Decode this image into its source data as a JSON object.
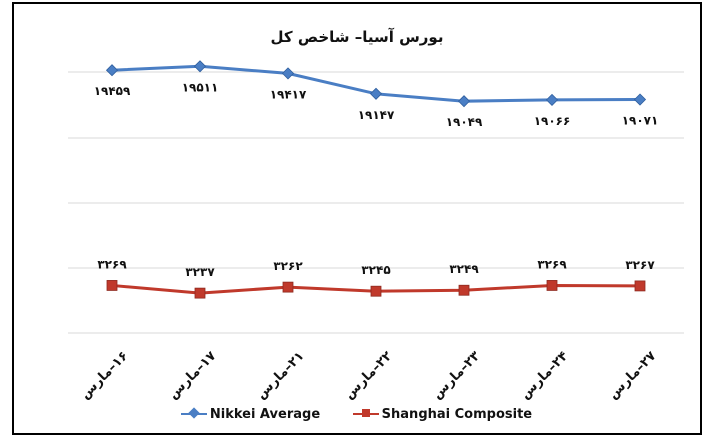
{
  "chart_data": {
    "type": "line",
    "title": "بورس آسیا– شاخص کل",
    "categories": [
      "۱۶–مارس",
      "۱۷–مارس",
      "۲۱–مارس",
      "۲۲–مارس",
      "۲۳–مارس",
      "۲۴–مارس",
      "۲۷–مارس"
    ],
    "series": [
      {
        "name": "Nikkei Average",
        "values": [
          19459,
          19511,
          19417,
          19147,
          19049,
          19066,
          19071
        ],
        "labels": [
          "۱۹۴۵۹",
          "۱۹۵۱۱",
          "۱۹۴۱۷",
          "۱۹۱۴۷",
          "۱۹۰۴۹",
          "۱۹۰۶۶",
          "۱۹۰۷۱"
        ],
        "color": "#4a7ec4",
        "marker": "diamond"
      },
      {
        "name": "Shanghai Composite",
        "values": [
          3269,
          3237,
          3262,
          3245,
          3249,
          3269,
          3267
        ],
        "labels": [
          "۳۲۶۹",
          "۳۲۳۷",
          "۳۲۶۲",
          "۳۲۴۵",
          "۳۲۴۹",
          "۳۲۶۹",
          "۳۲۶۷"
        ],
        "color": "#c0392b",
        "marker": "square"
      }
    ],
    "grid": true,
    "legend_position": "bottom"
  }
}
